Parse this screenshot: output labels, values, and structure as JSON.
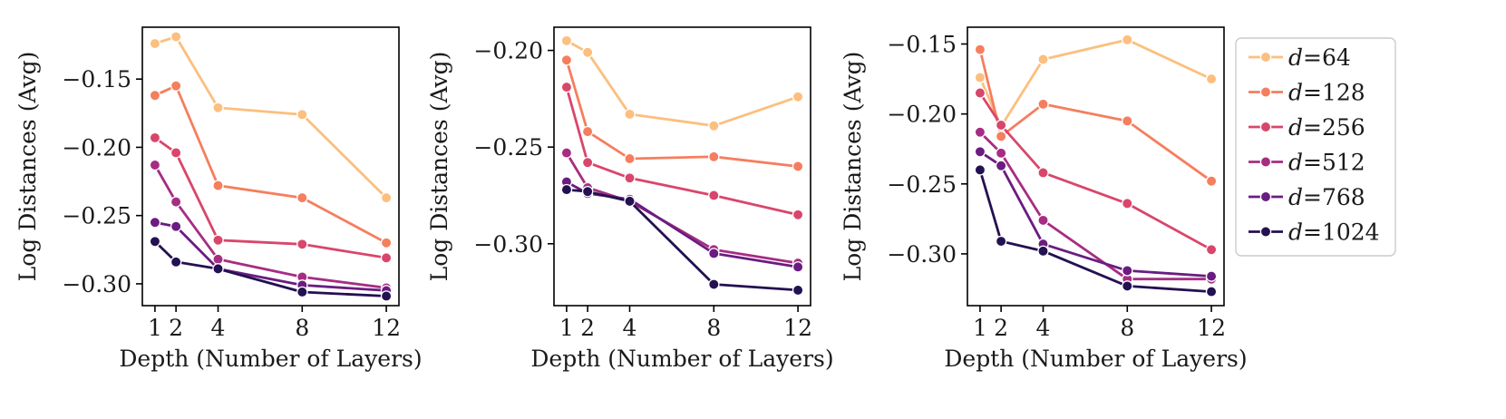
{
  "chart_data": [
    {
      "type": "line",
      "title": "",
      "xlabel": "Depth (Number of Layers)",
      "ylabel": "Log Distances (Avg)",
      "x": [
        1,
        2,
        4,
        8,
        12
      ],
      "xticks": [
        "1",
        "2",
        "4",
        "8",
        "12"
      ],
      "xlim": [
        0.4,
        12.6
      ],
      "ylim": [
        -0.316,
        -0.112
      ],
      "yticks": [
        -0.15,
        -0.2,
        -0.25,
        -0.3
      ],
      "ytick_labels": [
        "−0.15",
        "−0.20",
        "−0.25",
        "−0.30"
      ],
      "series": [
        {
          "name": "d=64",
          "values": [
            -0.124,
            -0.119,
            -0.171,
            -0.176,
            -0.237
          ]
        },
        {
          "name": "d=128",
          "values": [
            -0.162,
            -0.155,
            -0.228,
            -0.237,
            -0.27
          ]
        },
        {
          "name": "d=256",
          "values": [
            -0.193,
            -0.204,
            -0.268,
            -0.271,
            -0.281
          ]
        },
        {
          "name": "d=512",
          "values": [
            -0.213,
            -0.24,
            -0.282,
            -0.295,
            -0.303
          ]
        },
        {
          "name": "d=768",
          "values": [
            -0.255,
            -0.258,
            -0.289,
            -0.301,
            -0.305
          ]
        },
        {
          "name": "d=1024",
          "values": [
            -0.269,
            -0.284,
            -0.289,
            -0.306,
            -0.309
          ]
        }
      ]
    },
    {
      "type": "line",
      "title": "",
      "xlabel": "Depth (Number of Layers)",
      "ylabel": "Log Distances (Avg)",
      "x": [
        1,
        2,
        4,
        8,
        12
      ],
      "xticks": [
        "1",
        "2",
        "4",
        "8",
        "12"
      ],
      "xlim": [
        0.4,
        12.6
      ],
      "ylim": [
        -0.332,
        -0.188
      ],
      "yticks": [
        -0.2,
        -0.25,
        -0.3
      ],
      "ytick_labels": [
        "−0.20",
        "−0.25",
        "−0.30"
      ],
      "series": [
        {
          "name": "d=64",
          "values": [
            -0.195,
            -0.201,
            -0.233,
            -0.239,
            -0.224
          ]
        },
        {
          "name": "d=128",
          "values": [
            -0.205,
            -0.242,
            -0.256,
            -0.255,
            -0.26
          ]
        },
        {
          "name": "d=256",
          "values": [
            -0.219,
            -0.258,
            -0.266,
            -0.275,
            -0.285
          ]
        },
        {
          "name": "d=512",
          "values": [
            -0.253,
            -0.271,
            -0.278,
            -0.303,
            -0.31
          ]
        },
        {
          "name": "d=768",
          "values": [
            -0.268,
            -0.274,
            -0.277,
            -0.305,
            -0.312
          ]
        },
        {
          "name": "d=1024",
          "values": [
            -0.272,
            -0.273,
            -0.278,
            -0.321,
            -0.324
          ]
        }
      ]
    },
    {
      "type": "line",
      "title": "",
      "xlabel": "Depth (Number of Layers)",
      "ylabel": "Log Distances (Avg)",
      "x": [
        1,
        2,
        4,
        8,
        12
      ],
      "xticks": [
        "1",
        "2",
        "4",
        "8",
        "12"
      ],
      "xlim": [
        0.4,
        12.6
      ],
      "ylim": [
        -0.337,
        -0.138
      ],
      "yticks": [
        -0.15,
        -0.2,
        -0.25,
        -0.3
      ],
      "ytick_labels": [
        "−0.15",
        "−0.20",
        "−0.25",
        "−0.30"
      ],
      "series": [
        {
          "name": "d=64",
          "values": [
            -0.174,
            -0.209,
            -0.161,
            -0.147,
            -0.175
          ]
        },
        {
          "name": "d=128",
          "values": [
            -0.154,
            -0.216,
            -0.193,
            -0.205,
            -0.248
          ]
        },
        {
          "name": "d=256",
          "values": [
            -0.185,
            -0.208,
            -0.242,
            -0.264,
            -0.297
          ]
        },
        {
          "name": "d=512",
          "values": [
            -0.213,
            -0.228,
            -0.276,
            -0.318,
            -0.318
          ]
        },
        {
          "name": "d=768",
          "values": [
            -0.227,
            -0.237,
            -0.293,
            -0.312,
            -0.316
          ]
        },
        {
          "name": "d=1024",
          "values": [
            -0.24,
            -0.291,
            -0.298,
            -0.323,
            -0.327
          ]
        }
      ]
    }
  ],
  "legend": {
    "position": "right",
    "entries": [
      {
        "var": "d",
        "eq": "=64",
        "color": "#fcbf7e"
      },
      {
        "var": "d",
        "eq": "=128",
        "color": "#f57e5e"
      },
      {
        "var": "d",
        "eq": "=256",
        "color": "#d9466b"
      },
      {
        "var": "d",
        "eq": "=512",
        "color": "#a62d82"
      },
      {
        "var": "d",
        "eq": "=768",
        "color": "#6a1c81"
      },
      {
        "var": "d",
        "eq": "=1024",
        "color": "#231151"
      }
    ]
  }
}
